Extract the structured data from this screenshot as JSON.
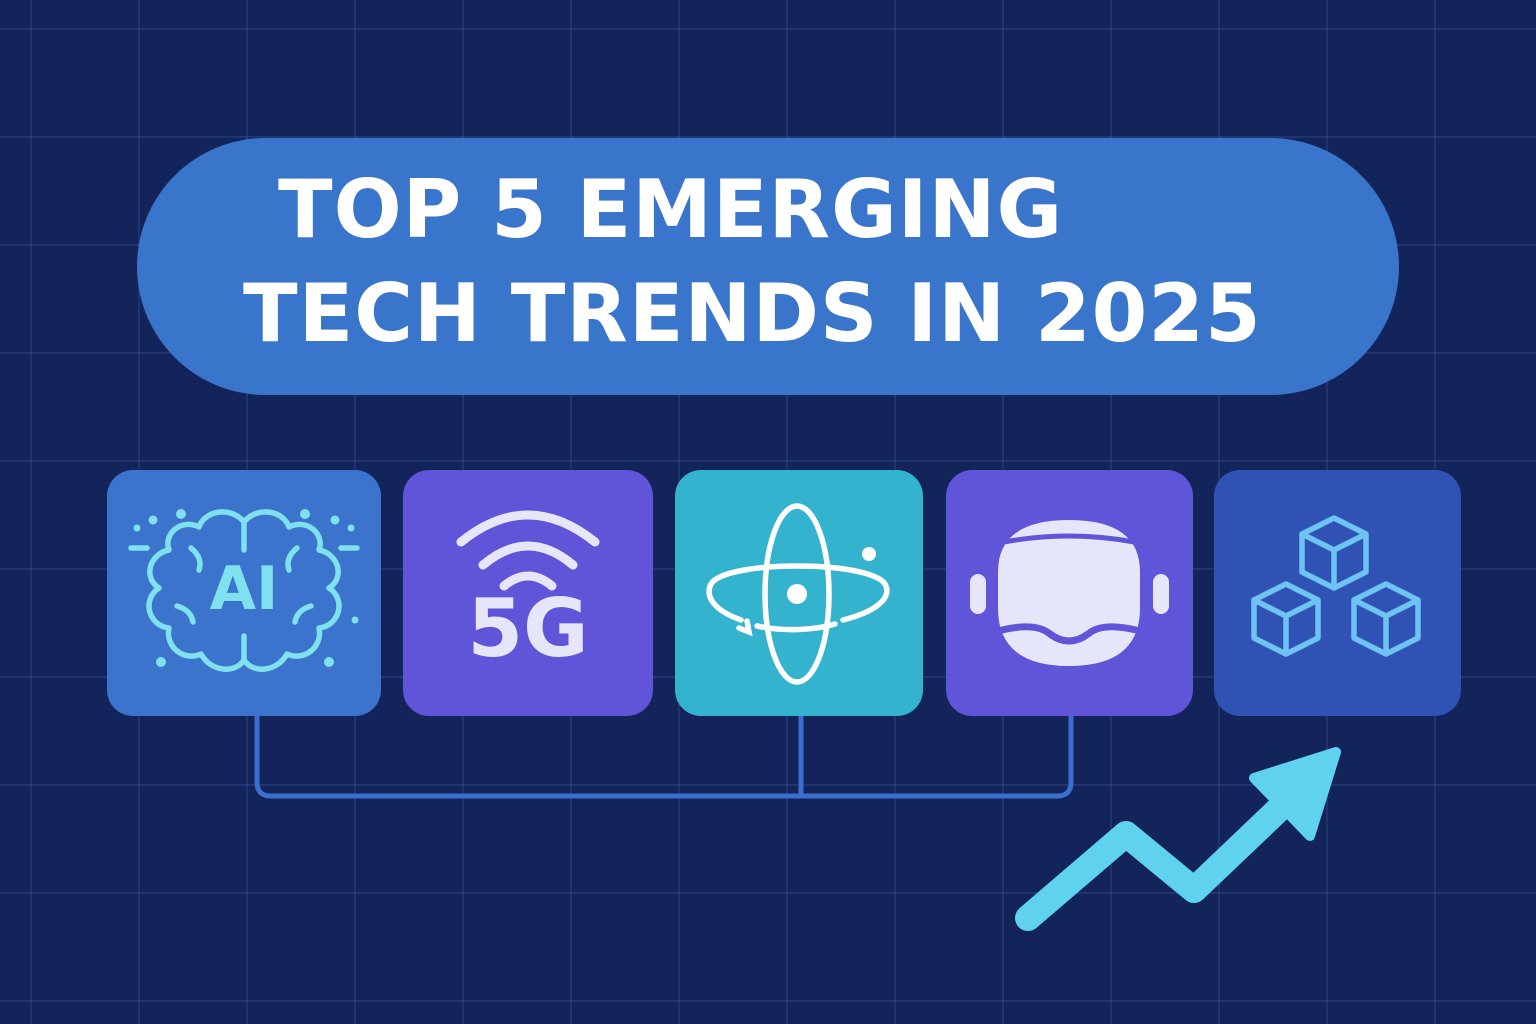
{
  "title": {
    "line1": "TOP 5 EMERGING",
    "line2": "TECH TRENDS IN 2025"
  },
  "cards": [
    {
      "id": "ai",
      "label": "AI",
      "icon": "ai-brain-icon"
    },
    {
      "id": "5g",
      "label": "5G",
      "icon": "wifi-signal-icon"
    },
    {
      "id": "quantum",
      "icon": "atom-icon"
    },
    {
      "id": "vr",
      "icon": "vr-headset-icon"
    },
    {
      "id": "blockchain",
      "icon": "blockchain-cubes-icon"
    }
  ],
  "decorations": {
    "connector": "connector-lines",
    "trend": "trend-up-arrow-icon"
  },
  "colors": {
    "background": "#13245a",
    "title_pill": "#3a75cc",
    "card_ai": "#3b73cd",
    "card_5g": "#6054d9",
    "card_quantum": "#34b3ce",
    "card_vr": "#6054d9",
    "card_blockchain": "#2f52b4",
    "ai_accent": "#7fe0ee",
    "arrow": "#5ed2ee",
    "connector": "#3a6fd0"
  }
}
